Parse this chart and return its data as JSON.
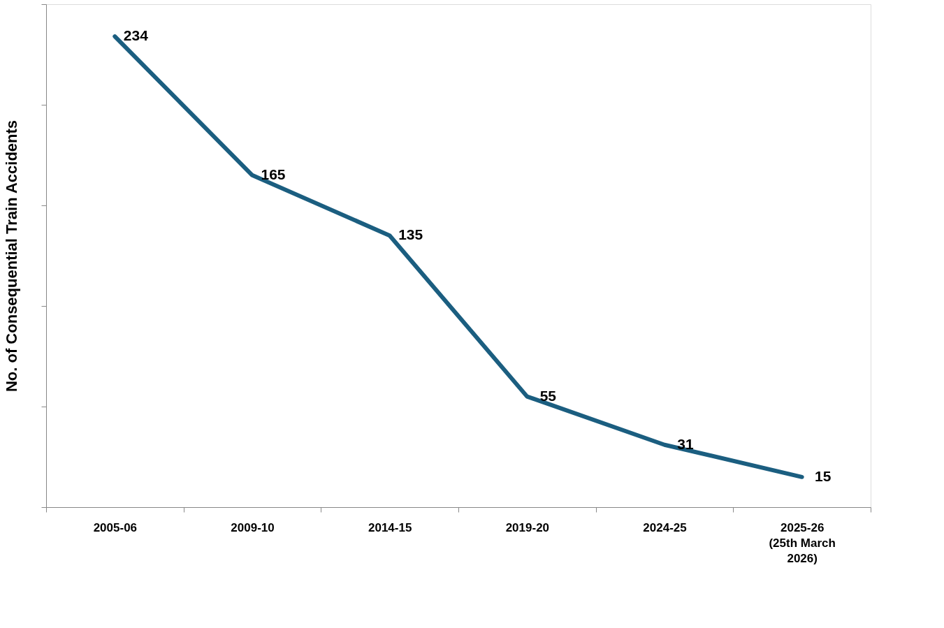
{
  "chart_data": {
    "type": "line",
    "ylabel": "No. of Consequential Train Accidents",
    "categories": [
      "2005-06",
      "2009-10",
      "2014-15",
      "2019-20",
      "2024-25",
      "2025-26\n(25th March\n2026)"
    ],
    "series": [
      {
        "color": "#1b5e80",
        "values": [
          234,
          165,
          135,
          55,
          31,
          15
        ]
      }
    ],
    "ylim": [
      0,
      250
    ],
    "yticks": [
      {
        "value": 0,
        "label": null
      },
      {
        "value": 50,
        "label": null
      },
      {
        "value": 100,
        "label": null
      },
      {
        "value": 150,
        "label": null
      },
      {
        "value": 200,
        "label": null
      },
      {
        "value": 250,
        "label": null
      }
    ],
    "tick_labels": "x",
    "data_labels": true,
    "grid": false,
    "marker": "none",
    "line_style": "solid"
  }
}
